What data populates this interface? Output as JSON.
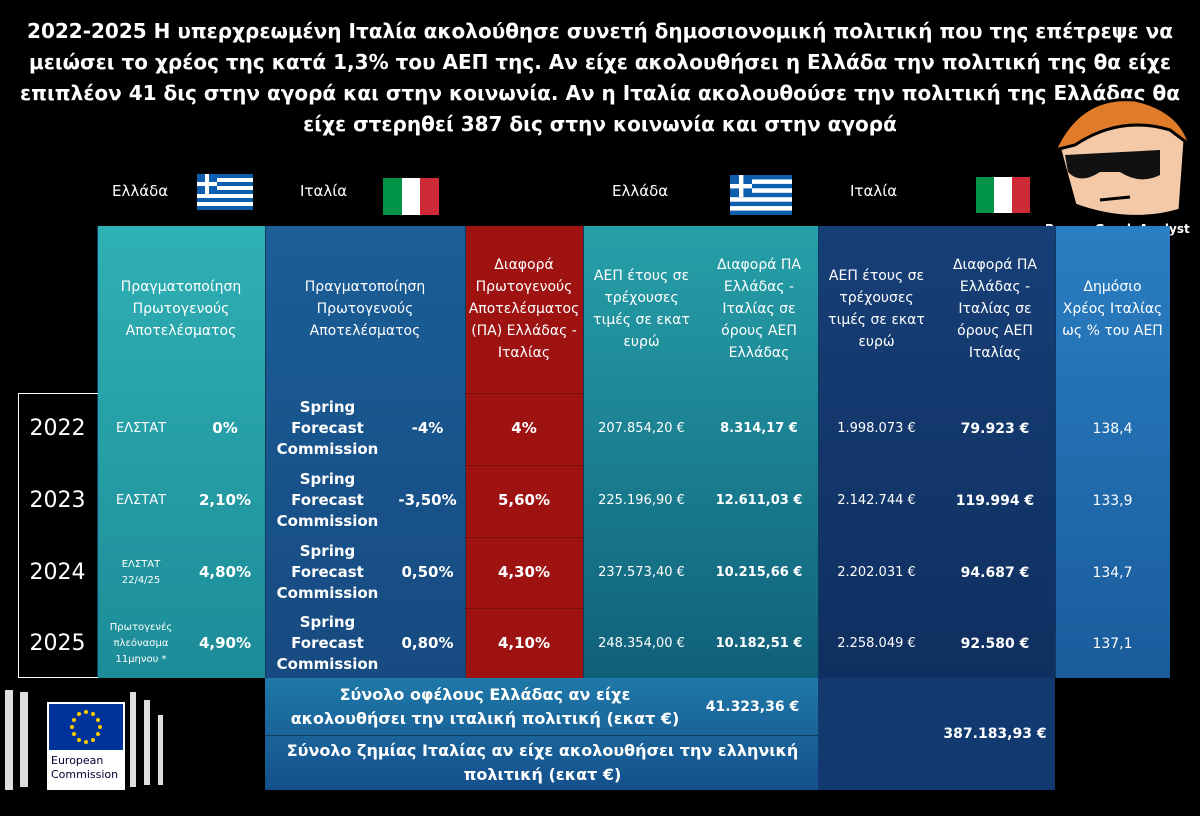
{
  "title": "2022-2025 Η υπερχρεωμένη Ιταλία ακολούθησε συνετή δημοσιονομική πολιτική που της επέτρεψε να μειώσει το χρέος της κατά 1,3% του ΑΕΠ της. Αν είχε ακολουθήσει η Ελλάδα την πολιτική της θα είχε επιπλέον 41 δις στην αγορά και στην κοινωνία. Αν η Ιταλία ακολουθούσε την πολιτική της Ελλάδας θα είχε στερηθεί 387 δις στην κοινωνία και στην αγορά",
  "flags": [
    "Ελλάδα",
    "Ιταλία",
    "Ελλάδα",
    "Ιταλία"
  ],
  "brand": "Proper Greek Analyst",
  "table": {
    "headers": [
      "Πραγματοποίηση Πρωτογενούς Αποτελέσματος",
      "Πραγματοποίηση Πρωτογενούς Αποτελέσματος",
      "Διαφορά Πρωτογενούς Αποτελέσματος (ΠΑ) Ελλάδας - Ιταλίας",
      "ΑΕΠ έτους σε τρέχουσες τιμές σε εκατ ευρώ",
      "Διαφορά ΠΑ Ελλάδας - Ιταλίας σε όρους ΑΕΠ Ελλάδας",
      "ΑΕΠ έτους σε τρέχουσες τιμές σε εκατ ευρώ",
      "Διαφορά ΠΑ Ελλάδας - Ιταλίας σε όρους ΑΕΠ Ιταλίας",
      "Δημόσιο Χρέος Ιταλίας ως % του ΑΕΠ"
    ],
    "rows": [
      [
        "2022",
        "ΕΛΣΤΑΤ",
        "0%",
        "Spring Forecast Commission",
        "-4%",
        "4%",
        "207.854,20 €",
        "8.314,17 €",
        "1.998.073 €",
        "79.923 €",
        "138,4"
      ],
      [
        "2023",
        "ΕΛΣΤΑΤ",
        "2,10%",
        "Spring Forecast Commission",
        "-3,50%",
        "5,60%",
        "225.196,90 €",
        "12.611,03 €",
        "2.142.744 €",
        "119.994 €",
        "133,9"
      ],
      [
        "2024",
        "ΕΛΣΤΑΤ 22/4/25",
        "4,80%",
        "Spring Forecast Commission",
        "0,50%",
        "4,30%",
        "237.573,40 €",
        "10.215,66 €",
        "2.202.031 €",
        "94.687 €",
        "134,7"
      ],
      [
        "2025",
        "Πρωτογενές πλεόνασμα 11μηνου *",
        "4,90%",
        "Spring Forecast Commission",
        "0,80%",
        "4,10%",
        "248.354,00 €",
        "10.182,51 €",
        "2.258.049 €",
        "92.580 €",
        "137,1"
      ]
    ]
  },
  "totals": {
    "greece_label": "Σύνολο οφέλους Ελλάδας αν είχε ακολουθήσει την ιταλική πολιτική (εκατ €)",
    "greece_value": "41.323,36 €",
    "italy_label": "Σύνολο ζημίας Ιταλίας αν είχε ακολουθήσει την ελληνική πολιτική (εκατ €)",
    "italy_value": "387.183,93 €"
  },
  "logo": "European Commission"
}
